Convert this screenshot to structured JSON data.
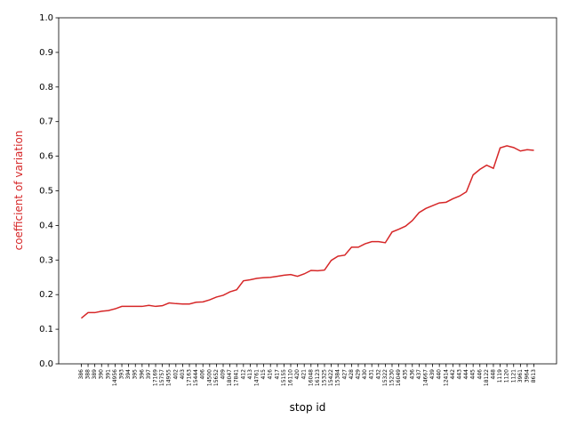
{
  "chart_data": {
    "type": "line",
    "xlabel": "stop id",
    "ylabel": "coefficient of variation",
    "categories": [
      "386",
      "388",
      "389",
      "390",
      "391",
      "14956",
      "393",
      "394",
      "395",
      "396",
      "397",
      "17169",
      "15757",
      "14955",
      "402",
      "403",
      "17163",
      "15444",
      "406",
      "14500",
      "15652",
      "409",
      "18047",
      "17841",
      "412",
      "413",
      "14761",
      "415",
      "416",
      "417",
      "15155",
      "16110",
      "420",
      "421",
      "16048",
      "16123",
      "15325",
      "15422",
      "15384",
      "427",
      "428",
      "429",
      "430",
      "431",
      "432",
      "15322",
      "15230",
      "16049",
      "435",
      "436",
      "437",
      "14667",
      "439",
      "440",
      "12414",
      "442",
      "443",
      "444",
      "445",
      "446",
      "18122",
      "448",
      "1119",
      "1120",
      "1121",
      "3961",
      "3964",
      "8613"
    ],
    "series": [
      {
        "name": "coefficient of variation",
        "color": "#d62728",
        "values": [
          0.132,
          0.148,
          0.148,
          0.152,
          0.154,
          0.159,
          0.166,
          0.166,
          0.166,
          0.166,
          0.169,
          0.166,
          0.168,
          0.176,
          0.174,
          0.173,
          0.173,
          0.178,
          0.179,
          0.185,
          0.193,
          0.198,
          0.208,
          0.214,
          0.24,
          0.243,
          0.247,
          0.249,
          0.25,
          0.253,
          0.256,
          0.258,
          0.253,
          0.26,
          0.27,
          0.269,
          0.271,
          0.299,
          0.311,
          0.314,
          0.337,
          0.337,
          0.347,
          0.353,
          0.353,
          0.35,
          0.381,
          0.389,
          0.398,
          0.414,
          0.437,
          0.449,
          0.457,
          0.465,
          0.467,
          0.477,
          0.485,
          0.497,
          0.546,
          0.562,
          0.574,
          0.565,
          0.624,
          0.63,
          0.625,
          0.615,
          0.619,
          0.617
        ]
      }
    ],
    "ylim": [
      0,
      1
    ],
    "yticks": [
      {
        "value": 0,
        "label": "0.0"
      },
      {
        "value": 0.1,
        "label": "0.1"
      },
      {
        "value": 0.2,
        "label": "0.2"
      },
      {
        "value": 0.3,
        "label": "0.3"
      },
      {
        "value": 0.4,
        "label": "0.4"
      },
      {
        "value": 0.5,
        "label": "0.5"
      },
      {
        "value": 0.6,
        "label": "0.6"
      },
      {
        "value": 0.7,
        "label": "0.7"
      },
      {
        "value": 0.8,
        "label": "0.8"
      },
      {
        "value": 0.9,
        "label": "0.9"
      },
      {
        "value": 1,
        "label": "1.0"
      }
    ],
    "grid": false
  }
}
